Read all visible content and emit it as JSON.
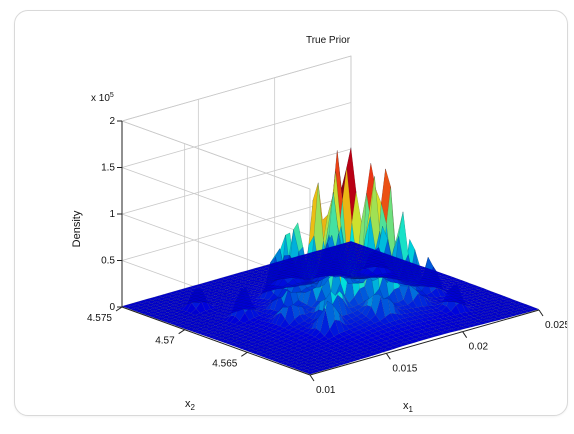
{
  "chart_data": {
    "type": "surface",
    "title": "True Prior",
    "xlabel": "x1",
    "ylabel": "x2",
    "zlabel": "Density",
    "z_exponent_label": "x 10^5",
    "xlim": [
      0.01,
      0.025
    ],
    "ylim": [
      4.56,
      4.575
    ],
    "zlim": [
      0,
      2
    ],
    "x_ticks": [
      "0.01",
      "0.015",
      "0.02",
      "0.025"
    ],
    "y_ticks": [
      "4.565",
      "4.57",
      "4.575"
    ],
    "z_ticks": [
      "0",
      "0.5",
      "1",
      "1.5",
      "2"
    ],
    "z_scale": 100000,
    "grid": true,
    "colormap": "jet",
    "surface_peaks": [
      {
        "x1": 0.0172,
        "x2": 4.5655,
        "z": 1.55
      },
      {
        "x1": 0.0168,
        "x2": 4.5662,
        "z": 1.45
      },
      {
        "x1": 0.0182,
        "x2": 4.5652,
        "z": 1.4
      },
      {
        "x1": 0.016,
        "x2": 4.5668,
        "z": 1.3
      },
      {
        "x1": 0.019,
        "x2": 4.5648,
        "z": 1.4
      },
      {
        "x1": 0.0178,
        "x2": 4.5675,
        "z": 1.2
      },
      {
        "x1": 0.0155,
        "x2": 4.565,
        "z": 1.1
      },
      {
        "x1": 0.0195,
        "x2": 4.5665,
        "z": 1.15
      },
      {
        "x1": 0.015,
        "x2": 4.568,
        "z": 0.9
      },
      {
        "x1": 0.0205,
        "x2": 4.5655,
        "z": 0.85
      },
      {
        "x1": 0.0165,
        "x2": 4.569,
        "z": 0.8
      },
      {
        "x1": 0.0185,
        "x2": 4.5685,
        "z": 0.95
      },
      {
        "x1": 0.0145,
        "x2": 4.564,
        "z": 0.75
      },
      {
        "x1": 0.02,
        "x2": 4.564,
        "z": 0.7
      },
      {
        "x1": 0.0175,
        "x2": 4.5635,
        "z": 0.9
      },
      {
        "x1": 0.021,
        "x2": 4.5675,
        "z": 0.6
      },
      {
        "x1": 0.014,
        "x2": 4.5665,
        "z": 0.6
      },
      {
        "x1": 0.016,
        "x2": 4.57,
        "z": 0.55
      },
      {
        "x1": 0.0195,
        "x2": 4.57,
        "z": 0.5
      },
      {
        "x1": 0.022,
        "x2": 4.565,
        "z": 0.4
      },
      {
        "x1": 0.013,
        "x2": 4.569,
        "z": 0.35
      },
      {
        "x1": 0.0225,
        "x2": 4.57,
        "z": 0.3
      },
      {
        "x1": 0.0125,
        "x2": 4.572,
        "z": 0.25
      },
      {
        "x1": 0.018,
        "x2": 4.5715,
        "z": 0.35
      },
      {
        "x1": 0.0215,
        "x2": 4.5625,
        "z": 0.3
      }
    ]
  }
}
